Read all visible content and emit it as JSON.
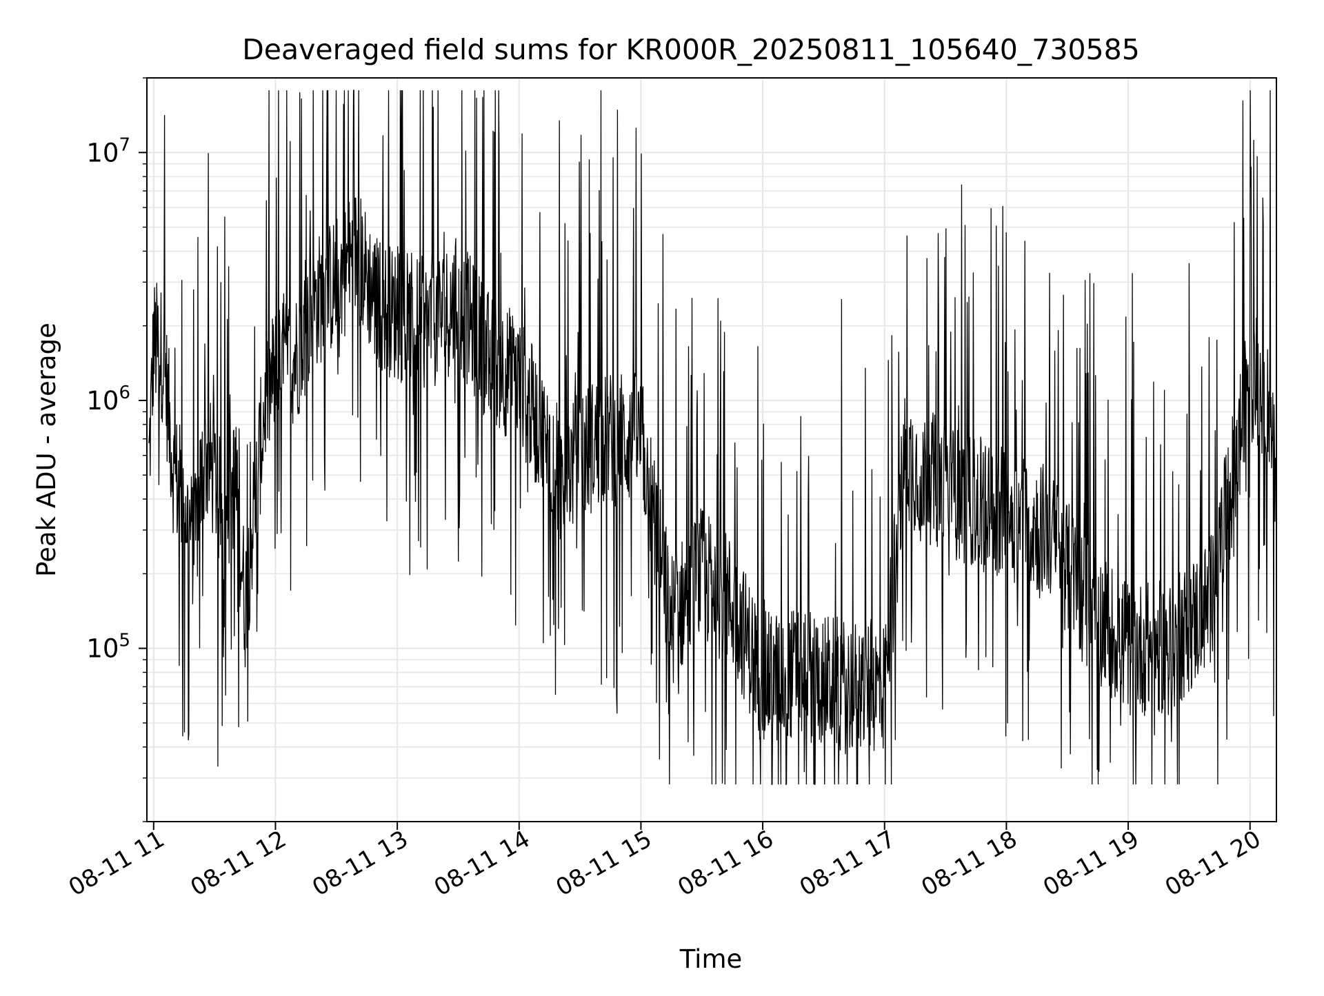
{
  "chart_data": {
    "type": "line",
    "title": "Deaveraged field sums for KR000R_20250811_105640_730585",
    "xlabel": "Time",
    "ylabel": "Peak ADU - average",
    "y_scale": "log",
    "ylim": [
      20000,
      20000000
    ],
    "xlim": [
      "2025-08-11 10:56:40",
      "2025-08-11 20:13:00"
    ],
    "x_ticks": [
      {
        "t": "2025-08-11 11:00",
        "label": "08-11 11"
      },
      {
        "t": "2025-08-11 12:00",
        "label": "08-11 12"
      },
      {
        "t": "2025-08-11 13:00",
        "label": "08-11 13"
      },
      {
        "t": "2025-08-11 14:00",
        "label": "08-11 14"
      },
      {
        "t": "2025-08-11 15:00",
        "label": "08-11 15"
      },
      {
        "t": "2025-08-11 16:00",
        "label": "08-11 16"
      },
      {
        "t": "2025-08-11 17:00",
        "label": "08-11 17"
      },
      {
        "t": "2025-08-11 18:00",
        "label": "08-11 18"
      },
      {
        "t": "2025-08-11 19:00",
        "label": "08-11 19"
      },
      {
        "t": "2025-08-11 20:00",
        "label": "08-11 20"
      }
    ],
    "y_ticks": [
      {
        "value": 100000,
        "mantissa": "10",
        "exp": "5"
      },
      {
        "value": 1000000,
        "mantissa": "10",
        "exp": "6"
      },
      {
        "value": 10000000,
        "mantissa": "10",
        "exp": "7"
      }
    ],
    "grid": true,
    "line_color": "#000000",
    "grid_color": "#e6e6e6",
    "series": [
      {
        "x": [
          "2025-08-11 10:57",
          "2025-08-11 11:00",
          "2025-08-11 11:05",
          "2025-08-11 11:10",
          "2025-08-11 11:15",
          "2025-08-11 11:20",
          "2025-08-11 11:25",
          "2025-08-11 11:30",
          "2025-08-11 11:35",
          "2025-08-11 11:40",
          "2025-08-11 11:45",
          "2025-08-11 11:50",
          "2025-08-11 11:55",
          "2025-08-11 12:00",
          "2025-08-11 12:10",
          "2025-08-11 12:20",
          "2025-08-11 12:30",
          "2025-08-11 12:40",
          "2025-08-11 12:50",
          "2025-08-11 13:00",
          "2025-08-11 13:15",
          "2025-08-11 13:30",
          "2025-08-11 13:45",
          "2025-08-11 14:00",
          "2025-08-11 14:20",
          "2025-08-11 14:40",
          "2025-08-11 15:00",
          "2025-08-11 15:15",
          "2025-08-11 15:30",
          "2025-08-11 15:45",
          "2025-08-11 16:00",
          "2025-08-11 16:20",
          "2025-08-11 16:40",
          "2025-08-11 17:00",
          "2025-08-11 17:10",
          "2025-08-11 17:20",
          "2025-08-11 17:40",
          "2025-08-11 18:00",
          "2025-08-11 18:20",
          "2025-08-11 18:40",
          "2025-08-11 19:00",
          "2025-08-11 19:20",
          "2025-08-11 19:40",
          "2025-08-11 19:50",
          "2025-08-11 20:00",
          "2025-08-11 20:10",
          "2025-08-11 20:13"
        ],
        "y": [
          400000,
          1700000,
          1500000,
          500000,
          400000,
          250000,
          600000,
          500000,
          300000,
          500000,
          150000,
          400000,
          1000000,
          1300000,
          1500000,
          2500000,
          3000000,
          4000000,
          2500000,
          2200000,
          2000000,
          2500000,
          1500000,
          1200000,
          500000,
          700000,
          700000,
          130000,
          200000,
          150000,
          75000,
          80000,
          70000,
          70000,
          600000,
          500000,
          400000,
          350000,
          300000,
          150000,
          100000,
          100000,
          150000,
          400000,
          1300000,
          1000000,
          350000
        ]
      }
    ]
  }
}
